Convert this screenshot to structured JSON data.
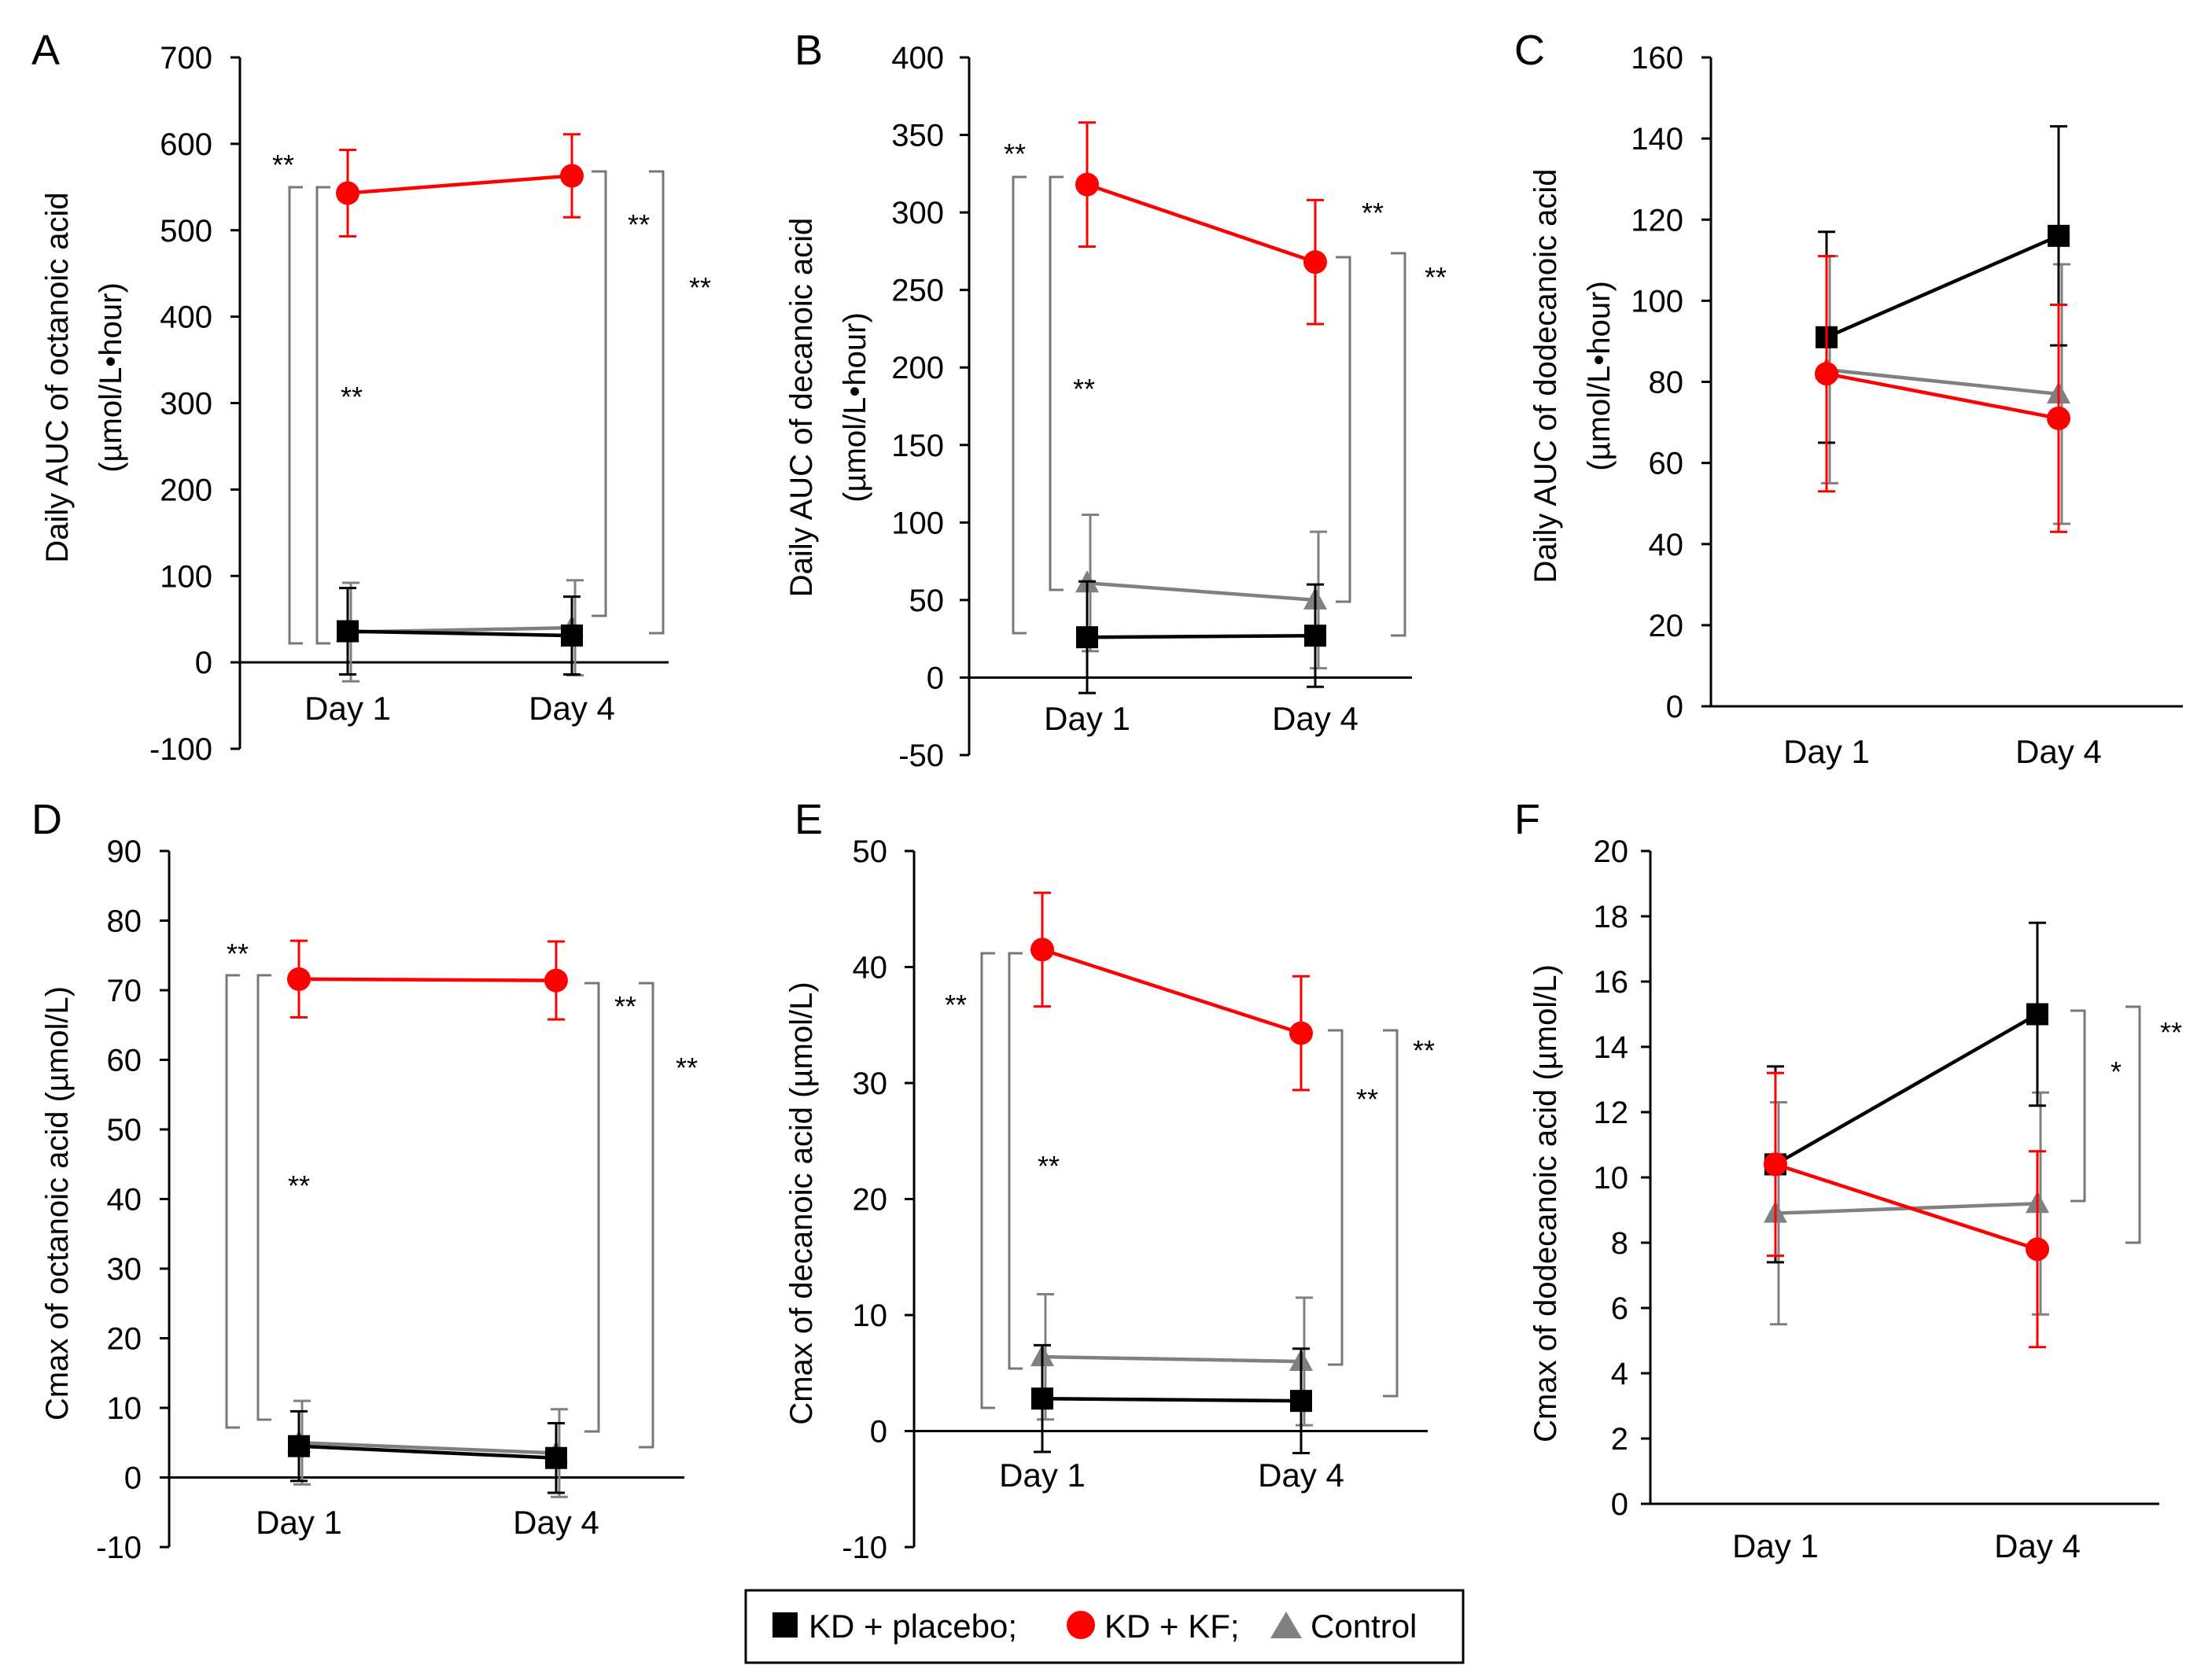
{
  "chart_data": [
    {
      "panel": "A",
      "type": "line",
      "ylabel": [
        "Daily AUC of octanoic acid",
        "(µmol/L•hour)"
      ],
      "categories": [
        "Day 1",
        "Day 4"
      ],
      "yticks": [
        "700",
        "600",
        "500",
        "400",
        "300",
        "200",
        "100",
        "0",
        "-100"
      ],
      "ylim": [
        -100,
        700
      ],
      "ystep": 100,
      "series": [
        {
          "name": "KD + placebo",
          "values": [
            36,
            31
          ],
          "errors": [
            50,
            45
          ]
        },
        {
          "name": "KD + KF",
          "values": [
            543,
            563
          ],
          "errors": [
            50,
            48
          ]
        },
        {
          "name": "Control",
          "values": [
            35,
            40
          ],
          "errors": [
            57,
            55
          ]
        }
      ],
      "annotations": [
        "**",
        "**",
        "**",
        "**"
      ]
    },
    {
      "panel": "B",
      "type": "line",
      "ylabel": [
        "Daily AUC of decanoic acid",
        "(µmol/L•hour)"
      ],
      "categories": [
        "Day 1",
        "Day 4"
      ],
      "yticks": [
        "400",
        "350",
        "300",
        "250",
        "200",
        "150",
        "100",
        "50",
        "0",
        "-50"
      ],
      "ylim": [
        -50,
        400
      ],
      "ystep": 50,
      "series": [
        {
          "name": "KD + placebo",
          "values": [
            26,
            27
          ],
          "errors": [
            36,
            33
          ]
        },
        {
          "name": "KD + KF",
          "values": [
            318,
            268
          ],
          "errors": [
            40,
            40
          ]
        },
        {
          "name": "Control",
          "values": [
            61,
            50
          ],
          "errors": [
            44,
            44
          ]
        }
      ],
      "annotations": [
        "**",
        "**",
        "**",
        "**"
      ]
    },
    {
      "panel": "C",
      "type": "line",
      "ylabel": [
        "Daily AUC of dodecanoic acid",
        "(µmol/L•hour)"
      ],
      "categories": [
        "Day 1",
        "Day 4"
      ],
      "yticks": [
        "160",
        "140",
        "120",
        "100",
        "80",
        "60",
        "40",
        "20",
        "0"
      ],
      "ylim": [
        0,
        160
      ],
      "ystep": 20,
      "series": [
        {
          "name": "KD + placebo",
          "values": [
            91,
            116
          ],
          "errors": [
            26,
            27
          ]
        },
        {
          "name": "KD + KF",
          "values": [
            82,
            71
          ],
          "errors": [
            29,
            28
          ]
        },
        {
          "name": "Control",
          "values": [
            83,
            77
          ],
          "errors": [
            28,
            32
          ]
        }
      ],
      "annotations": []
    },
    {
      "panel": "D",
      "type": "line",
      "ylabel": [
        "Cmax of octanoic acid (µmol/L)"
      ],
      "categories": [
        "Day 1",
        "Day 4"
      ],
      "yticks": [
        "90",
        "80",
        "70",
        "60",
        "50",
        "40",
        "30",
        "20",
        "10",
        "0",
        "-10"
      ],
      "ylim": [
        -10,
        90
      ],
      "ystep": 10,
      "series": [
        {
          "name": "KD + placebo",
          "values": [
            4.5,
            2.8
          ],
          "errors": [
            5,
            5
          ]
        },
        {
          "name": "KD + KF",
          "values": [
            71.6,
            71.4
          ],
          "errors": [
            5.5,
            5.6
          ]
        },
        {
          "name": "Control",
          "values": [
            5,
            3.5
          ],
          "errors": [
            6,
            6.3
          ]
        }
      ],
      "annotations": [
        "**",
        "**",
        "**",
        "**"
      ]
    },
    {
      "panel": "E",
      "type": "line",
      "ylabel": [
        "Cmax of decanoic acid (µmol/L)"
      ],
      "categories": [
        "Day 1",
        "Day 4"
      ],
      "yticks": [
        "50",
        "40",
        "30",
        "20",
        "10",
        "0",
        "-10"
      ],
      "ylim": [
        -10,
        50
      ],
      "ystep": 10,
      "series": [
        {
          "name": "KD + placebo",
          "values": [
            2.8,
            2.6
          ],
          "errors": [
            4.6,
            4.5
          ]
        },
        {
          "name": "KD + KF",
          "values": [
            41.5,
            34.3
          ],
          "errors": [
            4.9,
            4.9
          ]
        },
        {
          "name": "Control",
          "values": [
            6.4,
            6
          ],
          "errors": [
            5.4,
            5.5
          ]
        }
      ],
      "annotations": [
        "**",
        "**",
        "**",
        "**"
      ]
    },
    {
      "panel": "F",
      "type": "line",
      "ylabel": [
        "Cmax of dodecanoic acid (µmol/L)"
      ],
      "categories": [
        "Day 1",
        "Day 4"
      ],
      "yticks": [
        "20",
        "18",
        "16",
        "14",
        "12",
        "10",
        "8",
        "6",
        "4",
        "2",
        "0"
      ],
      "ylim": [
        0,
        20
      ],
      "ystep": 2,
      "series": [
        {
          "name": "KD + placebo",
          "values": [
            10.4,
            15
          ],
          "errors": [
            3,
            2.8
          ]
        },
        {
          "name": "KD + KF",
          "values": [
            10.4,
            7.8
          ],
          "errors": [
            2.8,
            3
          ]
        },
        {
          "name": "Control",
          "values": [
            8.9,
            9.2
          ],
          "errors": [
            3.4,
            3.4
          ]
        }
      ],
      "annotations": [
        "*",
        "**"
      ]
    }
  ],
  "legend": {
    "items": [
      "KD + placebo;",
      "KD + KF;",
      "Control"
    ],
    "colors": [
      "#000000",
      "#ff0000",
      "#808080"
    ]
  },
  "colors": {
    "KD + placebo": "#000000",
    "KD + KF": "#ff0000",
    "Control": "#808080"
  }
}
